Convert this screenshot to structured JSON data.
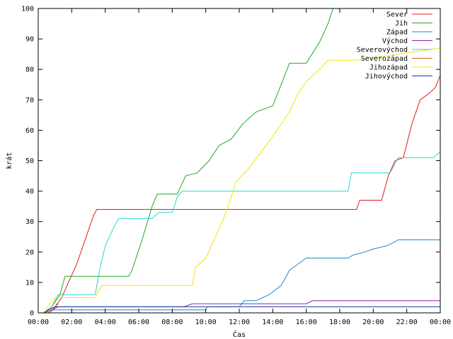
{
  "chart_data": {
    "type": "line",
    "title": "",
    "xlabel": "Čas",
    "ylabel": "krát",
    "ylim": [
      0,
      100
    ],
    "xlim_hours": [
      0,
      24
    ],
    "x_unit": "hours of day",
    "x_tick_labels": [
      "00:00",
      "02:00",
      "04:00",
      "06:00",
      "08:00",
      "10:00",
      "12:00",
      "14:00",
      "16:00",
      "18:00",
      "20:00",
      "22:00",
      "00:00"
    ],
    "y_ticks": [
      0,
      10,
      20,
      30,
      40,
      50,
      60,
      70,
      80,
      90,
      100
    ],
    "grid": false,
    "legend_position": "top-right",
    "series": [
      {
        "name": "Sever",
        "color": "#e41a1c",
        "x": [
          0.6,
          0.9,
          1.0,
          1.4,
          1.8,
          2.3,
          2.8,
          3.3,
          3.5,
          19.0,
          19.2,
          20.5,
          20.9,
          21.3,
          21.8,
          22.3,
          22.8,
          23.3,
          23.7,
          24.0
        ],
        "y": [
          0,
          1,
          2,
          5,
          10,
          16,
          24,
          32,
          34,
          34,
          37,
          37,
          45,
          50,
          51,
          62,
          70,
          72,
          74,
          78
        ]
      },
      {
        "name": "Jih",
        "color": "#1eab1e",
        "x": [
          0.4,
          0.8,
          1.3,
          1.6,
          5.4,
          5.6,
          6.2,
          6.8,
          7.1,
          8.3,
          8.8,
          9.5,
          10.2,
          10.8,
          11.5,
          12.2,
          13.0,
          14.0,
          14.5,
          15.0,
          16.0,
          16.8,
          17.3,
          17.6
        ],
        "y": [
          0,
          2,
          6,
          12,
          12,
          14,
          24,
          35,
          39,
          39,
          45,
          46,
          50,
          55,
          57,
          62,
          66,
          68,
          75,
          82,
          82,
          89,
          95,
          100
        ]
      },
      {
        "name": "Západ",
        "color": "#1a87c9",
        "x": [
          0.3,
          0.9,
          10.0,
          10.1,
          12.0,
          12.3,
          13.0,
          13.8,
          14.5,
          15.0,
          15.5,
          16.0,
          18.5,
          18.8,
          19.5,
          20.0,
          20.8,
          21.5,
          24.0
        ],
        "y": [
          0,
          1,
          1,
          2,
          2,
          4,
          4,
          6,
          9,
          14,
          16,
          18,
          18,
          19,
          20,
          21,
          22,
          24,
          24
        ]
      },
      {
        "name": "Východ",
        "color": "#8e24aa",
        "x": [
          0.3,
          0.8,
          1.2,
          8.7,
          9.2,
          16.0,
          16.4,
          24.0
        ],
        "y": [
          0,
          1,
          2,
          2,
          3,
          3,
          4,
          4
        ]
      },
      {
        "name": "Severovýchod",
        "color": "#2fd3d3",
        "x": [
          0.3,
          0.8,
          1.2,
          3.4,
          3.7,
          4.0,
          4.5,
          4.8,
          6.8,
          7.2,
          8.0,
          8.3,
          8.6,
          18.5,
          18.7,
          21.0,
          21.5,
          23.6,
          24.0
        ],
        "y": [
          0,
          2,
          6,
          6,
          15,
          22,
          28,
          31,
          31,
          33,
          33,
          38,
          40,
          40,
          46,
          46,
          51,
          51,
          53
        ]
      },
      {
        "name": "Severozápad",
        "color": "#d95f22",
        "x": [
          0.3,
          0.8,
          1.0,
          1.2
        ],
        "y": [
          0,
          1,
          2,
          3
        ]
      },
      {
        "name": "Jihozápad",
        "color": "#f2e600",
        "x": [
          0.3,
          0.7,
          1.0,
          3.4,
          3.8,
          9.2,
          9.4,
          10.0,
          10.5,
          11.0,
          11.4,
          11.8,
          12.5,
          13.2,
          14.0,
          14.5,
          15.0,
          15.5,
          16.0,
          16.8,
          17.3,
          19.0,
          24.0
        ],
        "y": [
          0,
          3,
          5,
          5,
          9,
          9,
          15,
          18,
          24,
          30,
          36,
          43,
          47,
          52,
          58,
          62,
          66,
          72,
          76,
          80,
          83,
          83,
          87
        ]
      },
      {
        "name": "Jihovýchod",
        "color": "#0b3fa8",
        "x": [
          0.4,
          0.6,
          1.0,
          24.0
        ],
        "y": [
          0,
          1,
          2,
          2
        ]
      }
    ]
  }
}
